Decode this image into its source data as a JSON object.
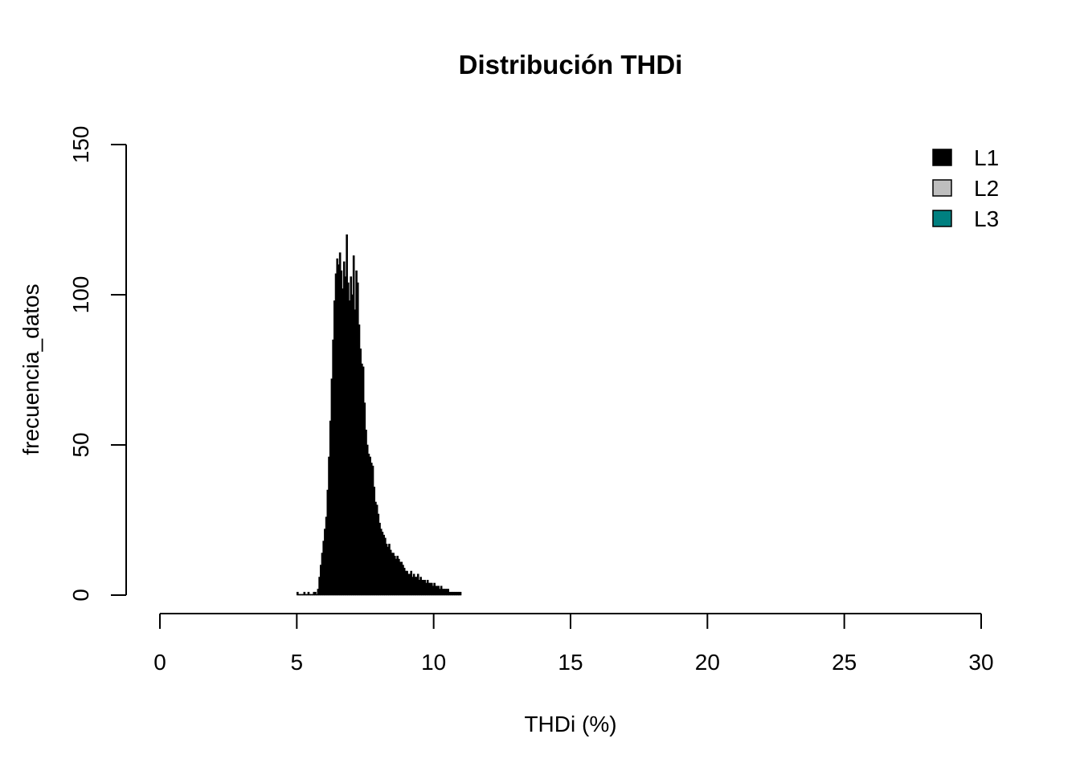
{
  "chart_data": {
    "type": "bar",
    "title": "Distribución THDi",
    "xlabel": "THDi (%)",
    "ylabel": "frecuencia_datos",
    "xlim": [
      0,
      30
    ],
    "ylim": [
      0,
      150
    ],
    "x_ticks": [
      "0",
      "5",
      "10",
      "15",
      "20",
      "25",
      "30"
    ],
    "y_ticks": [
      "0",
      "50",
      "100",
      "150"
    ],
    "grid": false,
    "legend_position": "top-right",
    "bin_width": 0.05,
    "bin_start": 5.0,
    "series": [
      {
        "name": "L1",
        "color": "#000000",
        "values": [
          1,
          0,
          0,
          0,
          0,
          1,
          0,
          0,
          1,
          0,
          0,
          0,
          1,
          1,
          0,
          2,
          6,
          10,
          14,
          18,
          22,
          26,
          35,
          46,
          58,
          72,
          85,
          98,
          107,
          112,
          110,
          114,
          108,
          102,
          111,
          106,
          120,
          104,
          98,
          106,
          100,
          113,
          95,
          108,
          104,
          90,
          82,
          77,
          76,
          64,
          55,
          50,
          47,
          46,
          44,
          43,
          36,
          31,
          30,
          27,
          24,
          22,
          21,
          20,
          19,
          17,
          16,
          17,
          15,
          14,
          14,
          13,
          12,
          13,
          12,
          11,
          11,
          10,
          9,
          8,
          8,
          7,
          7,
          8,
          6,
          7,
          6,
          6,
          7,
          5,
          6,
          5,
          5,
          5,
          4,
          5,
          4,
          4,
          4,
          3,
          4,
          3,
          3,
          3,
          2,
          3,
          2,
          2,
          2,
          2,
          2,
          1,
          1,
          1,
          1,
          1,
          1,
          1,
          1,
          1
        ]
      },
      {
        "name": "L2",
        "color": "#bebebe",
        "values": []
      },
      {
        "name": "L3",
        "color": "#008080",
        "values": []
      }
    ]
  }
}
